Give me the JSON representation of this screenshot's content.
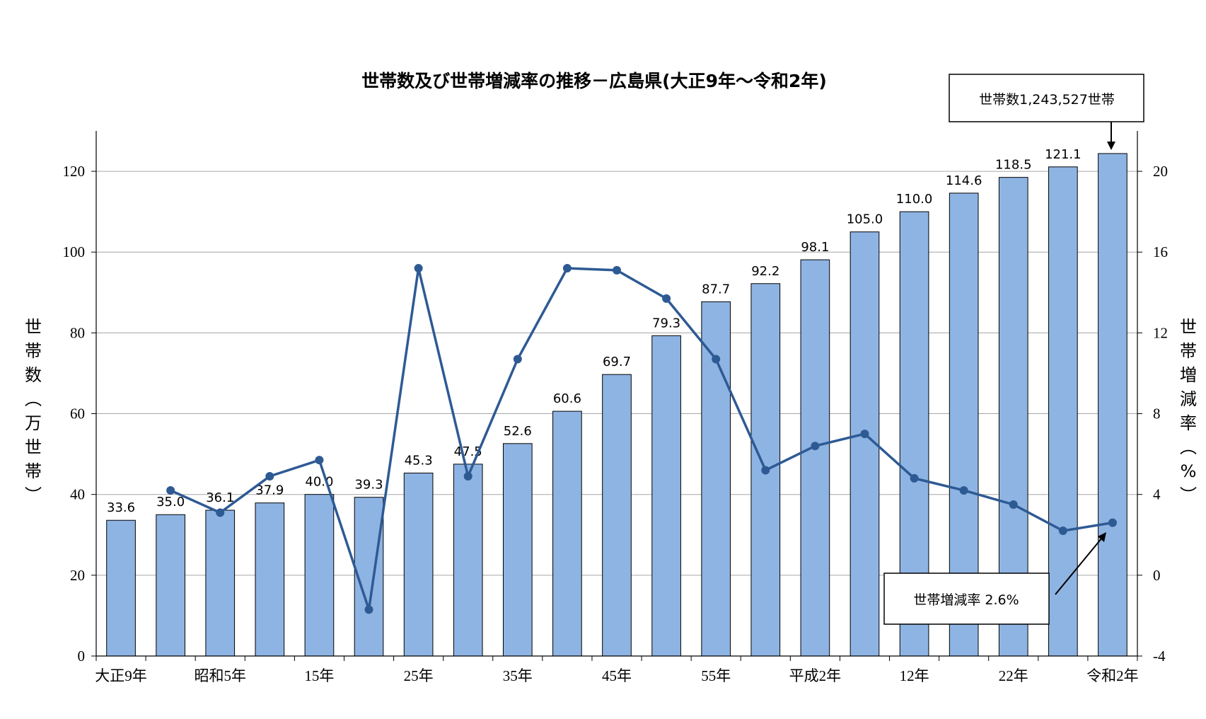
{
  "chart_data": {
    "type": "bar",
    "title": "世帯数及び世帯増減率の推移－広島県(大正9年～令和2年)",
    "ylabel_left": [
      "世",
      "帯",
      "数",
      "︵",
      "万",
      "世",
      "帯",
      "︶"
    ],
    "ylabel_right": [
      "世",
      "帯",
      "増",
      "減",
      "率",
      "︵",
      "%",
      "︶"
    ],
    "ylim_left": [
      0,
      130
    ],
    "yticks_left": [
      "0",
      "20",
      "40",
      "60",
      "80",
      "100",
      "120"
    ],
    "ylim_right": [
      -4,
      22
    ],
    "yticks_right": [
      "-4",
      "0",
      "4",
      "8",
      "12",
      "16",
      "20"
    ],
    "x_tick_labels": [
      "大正9年",
      "",
      "昭和5年",
      "",
      "15年",
      "",
      "25年",
      "",
      "35年",
      "",
      "45年",
      "",
      "55年",
      "",
      "平成2年",
      "",
      "12年",
      "",
      "22年",
      "",
      "令和2年"
    ],
    "series": [
      {
        "type": "bar",
        "color": "#8eb4e3",
        "values": [
          33.6,
          35.0,
          36.1,
          37.9,
          40.0,
          39.3,
          45.3,
          47.5,
          52.6,
          60.6,
          69.7,
          79.3,
          87.7,
          92.2,
          98.1,
          105.0,
          110.0,
          114.6,
          118.5,
          121.1,
          124.4
        ],
        "labels": [
          "33.6",
          "35.0",
          "36.1",
          "37.9",
          "40.0",
          "39.3",
          "45.3",
          "47.5",
          "52.6",
          "60.6",
          "69.7",
          "79.3",
          "87.7",
          "92.2",
          "98.1",
          "105.0",
          "110.0",
          "114.6",
          "118.5",
          "121.1",
          ""
        ]
      },
      {
        "type": "line",
        "color": "#2e5a94",
        "axis": "right",
        "values": [
          null,
          4.2,
          3.1,
          4.9,
          5.7,
          -1.7,
          15.2,
          4.9,
          10.7,
          15.2,
          15.1,
          13.7,
          10.7,
          5.2,
          6.4,
          7.0,
          4.8,
          4.2,
          3.5,
          2.2,
          2.6
        ]
      }
    ],
    "annotations": {
      "households": "世帯数1,243,527世帯",
      "rate": "世帯増減率 2.6%"
    }
  }
}
